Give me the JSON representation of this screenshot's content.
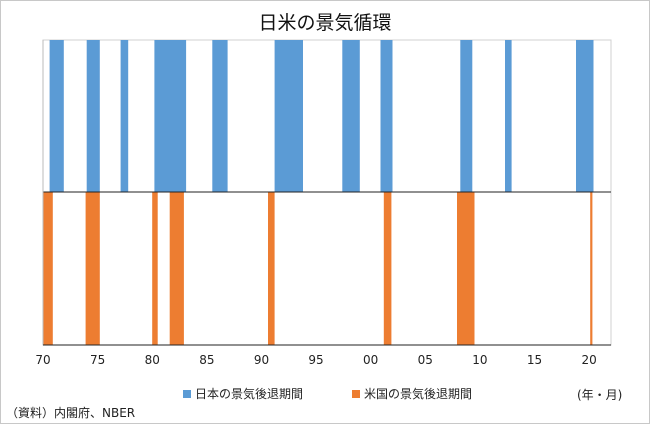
{
  "chart_data": {
    "type": "bar",
    "title": "日米の景気循環",
    "xlabel": "",
    "unit_label": "(年・月)",
    "source": "（資料）内閣府、NBER",
    "x_range": [
      1970,
      2022
    ],
    "x_ticks": [
      "70",
      "75",
      "80",
      "85",
      "90",
      "95",
      "00",
      "05",
      "10",
      "15",
      "20"
    ],
    "x_tick_years": [
      1970,
      1975,
      1980,
      1985,
      1990,
      1995,
      2000,
      2005,
      2010,
      2015,
      2020
    ],
    "series": [
      {
        "name": "日本の景気後退期間",
        "color": "#5b9bd5",
        "periods": [
          [
            1970.6,
            1971.9
          ],
          [
            1974.0,
            1975.2
          ],
          [
            1977.1,
            1977.8
          ],
          [
            1980.2,
            1983.1
          ],
          [
            1985.5,
            1986.9
          ],
          [
            1991.2,
            1993.8
          ],
          [
            1997.4,
            1999.0
          ],
          [
            2000.9,
            2002.0
          ],
          [
            2008.2,
            2009.3
          ],
          [
            2012.3,
            2012.9
          ],
          [
            2018.8,
            2020.4
          ]
        ]
      },
      {
        "name": "米国の景気後退期間",
        "color": "#ed7d31",
        "periods": [
          [
            1969.9,
            1970.9
          ],
          [
            1973.9,
            1975.2
          ],
          [
            1980.0,
            1980.5
          ],
          [
            1981.6,
            1982.9
          ],
          [
            1990.6,
            1991.2
          ],
          [
            2001.2,
            2001.9
          ],
          [
            2007.9,
            2009.5
          ],
          [
            2020.1,
            2020.3
          ]
        ]
      }
    ]
  }
}
